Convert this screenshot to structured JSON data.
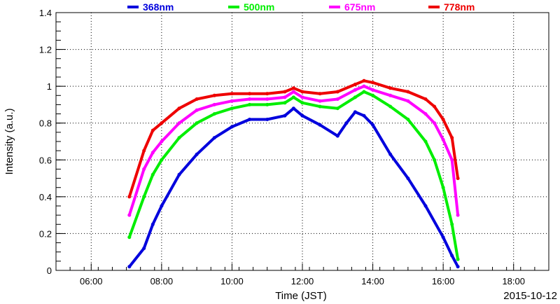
{
  "chart_data": {
    "type": "scatter",
    "xlabel": "Time (JST)",
    "ylabel": "Intensity (a.u.)",
    "date_label": "2015-10-12",
    "xlim": [
      "05:00",
      "19:00"
    ],
    "ylim": [
      0,
      1.4
    ],
    "x_ticks": [
      "06:00",
      "08:00",
      "10:00",
      "12:00",
      "14:00",
      "16:00",
      "18:00"
    ],
    "y_ticks": [
      "0",
      "0.2",
      "0.4",
      "0.6",
      "0.8",
      "1",
      "1.2",
      "1.4"
    ],
    "grid": true,
    "legend_position": "top",
    "series": [
      {
        "name": "368nm",
        "color": "#0000dd",
        "x": [
          "07:05",
          "07:30",
          "07:45",
          "08:00",
          "08:30",
          "09:00",
          "09:30",
          "10:00",
          "10:30",
          "11:00",
          "11:30",
          "11:45",
          "12:00",
          "12:30",
          "13:00",
          "13:15",
          "13:30",
          "13:45",
          "14:00",
          "14:30",
          "15:00",
          "15:30",
          "16:00",
          "16:15",
          "16:25"
        ],
        "y": [
          0.02,
          0.12,
          0.25,
          0.35,
          0.52,
          0.63,
          0.72,
          0.78,
          0.82,
          0.82,
          0.84,
          0.88,
          0.84,
          0.79,
          0.73,
          0.8,
          0.86,
          0.84,
          0.79,
          0.63,
          0.5,
          0.35,
          0.18,
          0.08,
          0.02
        ]
      },
      {
        "name": "500nm",
        "color": "#00ee00",
        "x": [
          "07:05",
          "07:30",
          "07:45",
          "08:00",
          "08:30",
          "09:00",
          "09:30",
          "10:00",
          "10:30",
          "11:00",
          "11:30",
          "11:45",
          "12:00",
          "12:30",
          "13:00",
          "13:30",
          "13:45",
          "14:00",
          "14:30",
          "15:00",
          "15:30",
          "15:45",
          "16:00",
          "16:15",
          "16:25"
        ],
        "y": [
          0.18,
          0.4,
          0.52,
          0.6,
          0.72,
          0.8,
          0.85,
          0.88,
          0.9,
          0.9,
          0.91,
          0.94,
          0.91,
          0.89,
          0.88,
          0.94,
          0.97,
          0.95,
          0.89,
          0.82,
          0.7,
          0.6,
          0.45,
          0.25,
          0.06
        ]
      },
      {
        "name": "675nm",
        "color": "#ff00ff",
        "x": [
          "07:05",
          "07:30",
          "07:45",
          "08:00",
          "08:30",
          "09:00",
          "09:30",
          "10:00",
          "10:30",
          "11:00",
          "11:30",
          "11:45",
          "12:00",
          "12:30",
          "13:00",
          "13:30",
          "13:45",
          "14:00",
          "14:30",
          "15:00",
          "15:30",
          "15:45",
          "16:00",
          "16:15",
          "16:25"
        ],
        "y": [
          0.3,
          0.55,
          0.64,
          0.7,
          0.8,
          0.87,
          0.9,
          0.92,
          0.93,
          0.93,
          0.94,
          0.97,
          0.94,
          0.92,
          0.93,
          0.98,
          1.0,
          0.98,
          0.95,
          0.92,
          0.85,
          0.8,
          0.71,
          0.6,
          0.3
        ]
      },
      {
        "name": "778nm",
        "color": "#ee0000",
        "x": [
          "07:05",
          "07:30",
          "07:45",
          "08:00",
          "08:30",
          "09:00",
          "09:30",
          "10:00",
          "10:30",
          "11:00",
          "11:30",
          "11:45",
          "12:00",
          "12:30",
          "13:00",
          "13:30",
          "13:45",
          "14:00",
          "14:30",
          "15:00",
          "15:30",
          "15:45",
          "16:00",
          "16:15",
          "16:25"
        ],
        "y": [
          0.4,
          0.65,
          0.76,
          0.8,
          0.88,
          0.93,
          0.95,
          0.96,
          0.96,
          0.96,
          0.97,
          0.99,
          0.97,
          0.96,
          0.97,
          1.01,
          1.03,
          1.02,
          0.99,
          0.97,
          0.93,
          0.89,
          0.82,
          0.72,
          0.5
        ]
      }
    ]
  }
}
